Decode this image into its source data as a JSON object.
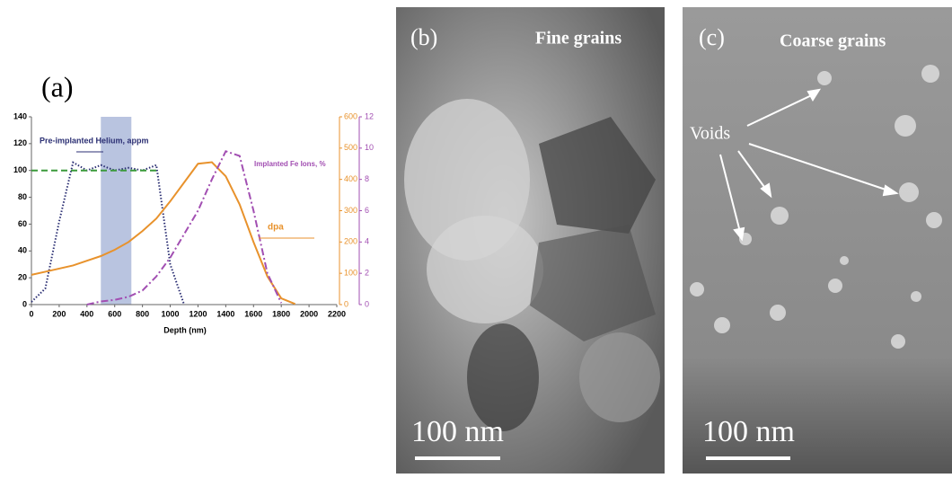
{
  "chart_data": {
    "type": "line",
    "label": "(a)",
    "x_label": "Depth (nm)",
    "x": [
      0,
      100,
      200,
      300,
      400,
      500,
      600,
      700,
      800,
      900,
      1000,
      1100,
      1200,
      1300,
      1400,
      1500,
      1600,
      1700,
      1800,
      1900,
      2000,
      2100,
      2200
    ],
    "xlim": [
      0,
      2200
    ],
    "xticks": [
      0,
      200,
      400,
      600,
      800,
      1000,
      1200,
      1400,
      1600,
      1800,
      2000,
      2200
    ],
    "ylim": [
      0,
      140
    ],
    "yticks": [
      0,
      20,
      40,
      60,
      80,
      100,
      120,
      140
    ],
    "y2lim": [
      0,
      600
    ],
    "y2ticks": [
      0,
      100,
      200,
      300,
      400,
      500,
      600
    ],
    "y3lim": [
      0,
      12
    ],
    "y3ticks": [
      0,
      2,
      4,
      6,
      8,
      10,
      12
    ],
    "band": [
      500,
      720
    ],
    "series": [
      {
        "name": "Pre-implanted Helium, appm",
        "color": "#2b2f73",
        "style": "dotted",
        "axis": "y",
        "values": [
          2,
          12,
          62,
          106,
          100,
          104,
          100,
          102,
          100,
          104,
          30,
          0,
          null,
          null,
          null,
          null,
          null,
          null,
          null,
          null,
          null,
          null,
          null
        ]
      },
      {
        "color": "#3a9a3a",
        "style": "dashed",
        "axis": "y",
        "values": [
          100,
          100,
          100,
          100,
          100,
          100,
          100,
          100,
          100,
          100,
          null,
          null,
          null,
          null,
          null,
          null,
          null,
          null,
          null,
          null,
          null,
          null,
          null
        ]
      },
      {
        "name": "dpa",
        "color": "#e8922c",
        "style": "solid",
        "axis": "y2",
        "values": [
          95,
          105,
          115,
          125,
          140,
          155,
          175,
          200,
          235,
          275,
          330,
          390,
          450,
          455,
          410,
          320,
          200,
          90,
          20,
          2,
          null,
          null,
          null
        ]
      },
      {
        "name": "Implanted Fe Ions, %",
        "color": "#a24fb2",
        "style": "dashdot",
        "axis": "y3",
        "values": [
          null,
          null,
          null,
          null,
          0,
          0.2,
          0.3,
          0.5,
          0.9,
          1.8,
          3,
          4.5,
          6,
          8,
          9.8,
          9.5,
          6,
          2,
          0.1,
          null,
          null,
          null,
          null
        ]
      }
    ]
  },
  "panels": [
    {
      "label": "(b)",
      "caption": "Fine grains",
      "scale_bar": "100 nm"
    },
    {
      "label": "(c)",
      "caption": "Coarse grains",
      "annotation": "Voids",
      "scale_bar": "100 nm"
    }
  ]
}
